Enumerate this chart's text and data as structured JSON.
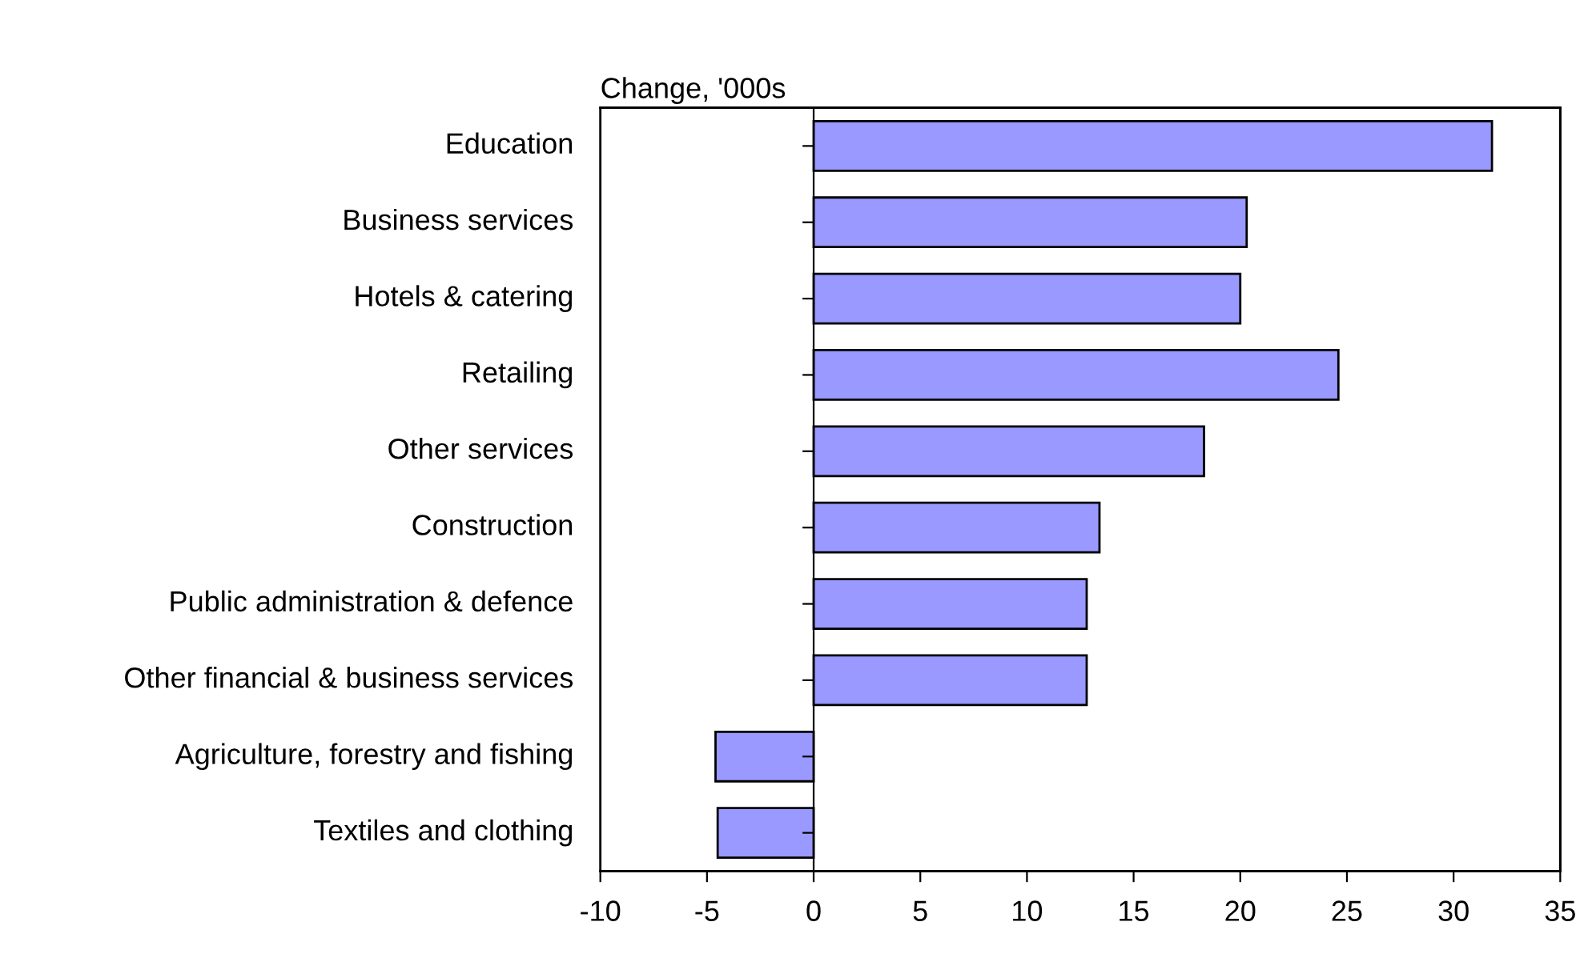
{
  "chart_data": {
    "type": "bar",
    "orientation": "horizontal",
    "xlabel": "Change, '000s",
    "categories": [
      "Education",
      "Business services",
      "Hotels & catering",
      "Retailing",
      "Other services",
      "Construction",
      "Public administration & defence",
      "Other financial & business services",
      "Agriculture, forestry and fishing",
      "Textiles and clothing"
    ],
    "values": [
      31.8,
      20.3,
      20.0,
      24.6,
      18.3,
      13.4,
      12.8,
      12.8,
      -4.6,
      -4.5
    ],
    "color": "#9999ff",
    "xlim": [
      -10,
      35
    ],
    "xticks": [
      -10,
      -5,
      0,
      5,
      10,
      15,
      20,
      25,
      30,
      35
    ]
  }
}
